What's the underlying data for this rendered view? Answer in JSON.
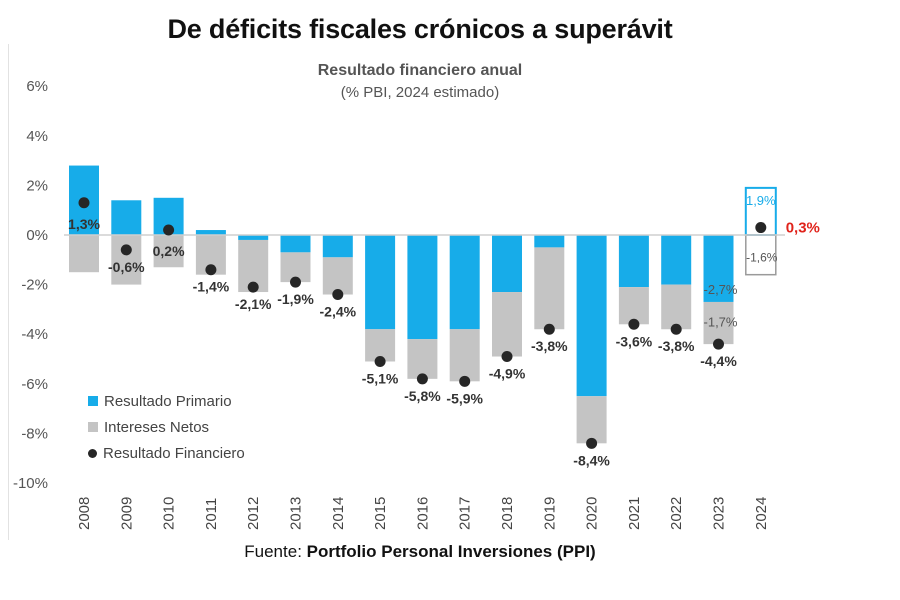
{
  "header": {
    "title": "De déficits fiscales crónicos a superávit",
    "subtitle": "Resultado financiero anual",
    "subtitle2": "(% PBI, 2024 estimado)"
  },
  "footer": {
    "source_prefix": "Fuente: ",
    "source_name": "Portfolio Personal Inversiones (PPI)"
  },
  "colors": {
    "primario": "#17ace9",
    "intereses": "#c4c4c4",
    "financiero": "#262626",
    "highlight": "#e0231b"
  },
  "chart_data": {
    "type": "bar",
    "title": "Resultado financiero anual",
    "subtitle": "(% PBI, 2024 estimado)",
    "categories": [
      "2008",
      "2009",
      "2010",
      "2011",
      "2012",
      "2013",
      "2014",
      "2015",
      "2016",
      "2017",
      "2018",
      "2019",
      "2020",
      "2021",
      "2022",
      "2023",
      "2024"
    ],
    "ylim": [
      -10,
      6
    ],
    "yticks": [
      6,
      4,
      2,
      0,
      -2,
      -4,
      -6,
      -8,
      -10
    ],
    "ytick_labels": [
      "6%",
      "4%",
      "2%",
      "0%",
      "-2%",
      "-4%",
      "-6%",
      "-8%",
      "-10%"
    ],
    "grid": false,
    "legend_position": "bottom-left",
    "series": [
      {
        "name": "Resultado Primario",
        "kind": "bar",
        "values": [
          2.8,
          1.4,
          1.5,
          0.2,
          -0.2,
          -0.7,
          -0.9,
          -3.8,
          -4.2,
          -3.8,
          -2.3,
          -0.5,
          -6.5,
          -2.1,
          -2.0,
          -2.7,
          1.9
        ]
      },
      {
        "name": "Intereses Netos",
        "kind": "bar",
        "values": [
          -1.5,
          -2.0,
          -1.3,
          -1.6,
          -2.1,
          -1.2,
          -1.5,
          -1.3,
          -1.6,
          -2.1,
          -2.6,
          -3.3,
          -1.9,
          -1.5,
          -1.8,
          -1.7,
          -1.6
        ]
      },
      {
        "name": "Resultado Financiero",
        "kind": "point",
        "values": [
          1.3,
          -0.6,
          0.2,
          -1.4,
          -2.1,
          -1.9,
          -2.4,
          -5.1,
          -5.8,
          -5.9,
          -4.9,
          -3.8,
          -8.4,
          -3.6,
          -3.8,
          -4.4,
          0.3
        ]
      }
    ],
    "data_labels": [
      "1,3%",
      "-0,6%",
      "0,2%",
      "-1,4%",
      "-2,1%",
      "-1,9%",
      "-2,4%",
      "-5,1%",
      "-5,8%",
      "-5,9%",
      "-4,9%",
      "-3,8%",
      "-8,4%",
      "-3,6%",
      "-3,8%",
      "-4,4%",
      "0,3%"
    ],
    "annotations": [
      {
        "year": "2023",
        "label": "-2,7%"
      },
      {
        "year": "2023",
        "label": "-1,7%"
      },
      {
        "year": "2024",
        "label": "1,9%"
      },
      {
        "year": "2024",
        "label": "-1,6%"
      }
    ]
  }
}
